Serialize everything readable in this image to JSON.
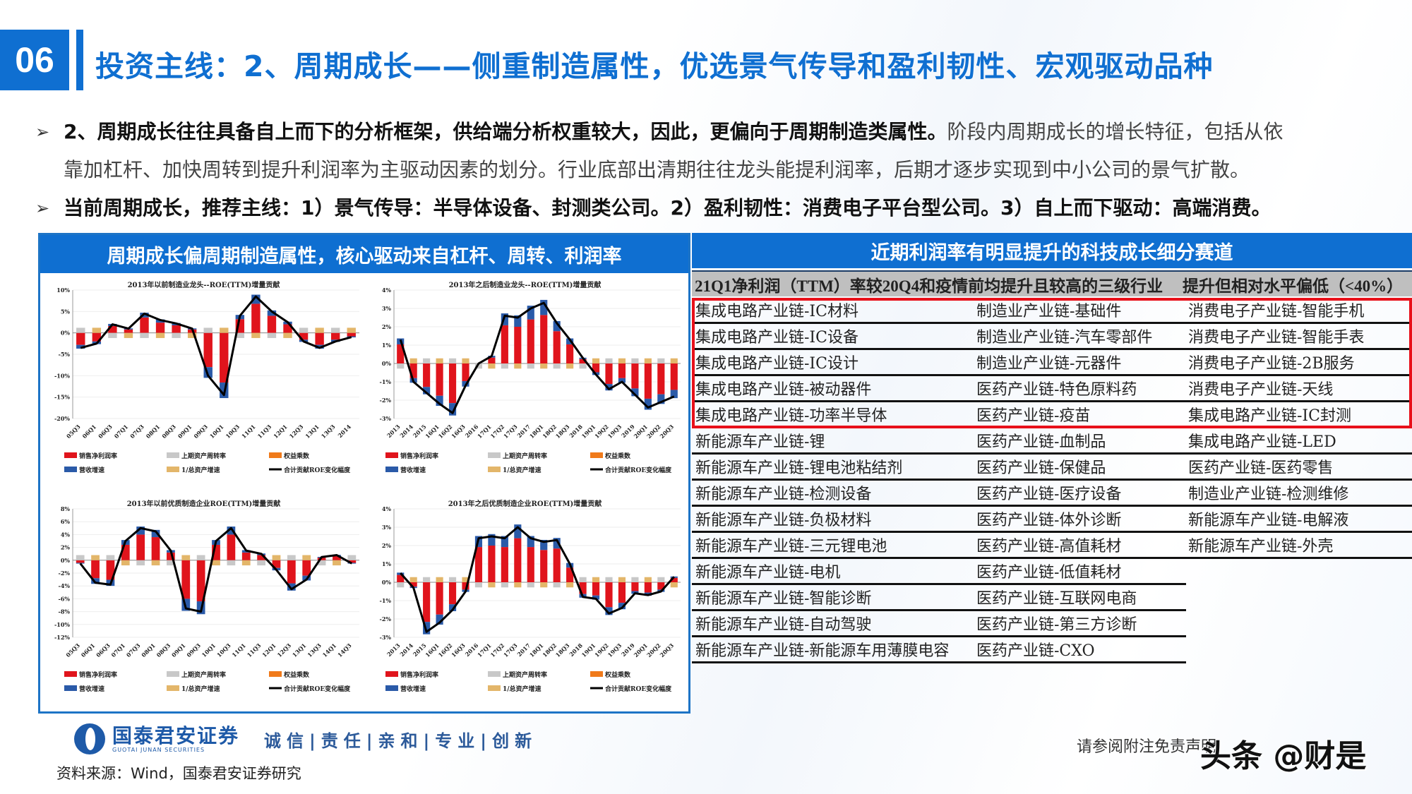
{
  "section_number": "06",
  "title": "投资主线：2、周期成长——侧重制造属性，优选景气传导和盈利韧性、宏观驱动品种",
  "bullets": [
    {
      "arrow": "➢",
      "bold": "2、周期成长往往具备自上而下的分析框架，供给端分析权重较大，因此，更偏向于周期制造类属性。",
      "normal": "阶段内周期成长的增长特征，包括从依",
      "line2": "靠加杠杆、加快周转到提升利润率为主驱动因素的划分。行业底部出清期往往龙头能提利润率，后期才逐步实现到中小公司的景气扩散。"
    },
    {
      "arrow": "➢",
      "bold": "当前周期成长，推荐主线：1）景气传导：半导体设备、封测类公司。2）盈利韧性：消费电子平台型公司。3）自上而下驱动：高端消费。"
    }
  ],
  "left_panel": {
    "header": "周期成长偏周期制造属性，核心驱动来自杠杆、周转、利润率",
    "legend": [
      "销售净利润率",
      "上期资产周转率",
      "权益乘数",
      "营收增速",
      "1/总资产增速",
      "合计贡献ROE变化幅度"
    ],
    "legend_colors": [
      "#e0141c",
      "#c8c8c8",
      "#f07a1a",
      "#2a5aa8",
      "#e3b66a",
      "#000000"
    ]
  },
  "chart_data": [
    {
      "type": "bar",
      "title": "2013年以前制造业龙头--ROE(TTM)增量贡献",
      "categories": [
        "05Q3",
        "06Q1",
        "06Q3",
        "07Q1",
        "07Q3",
        "08Q1",
        "08Q3",
        "09Q1",
        "09Q3",
        "10Q1",
        "10Q3",
        "11Q1",
        "11Q3",
        "12Q1",
        "12Q3",
        "13Q1",
        "13Q3",
        "2014"
      ],
      "ylim": [
        -20,
        10
      ],
      "yticks": [
        "10%",
        "5%",
        "0%",
        "-5%",
        "-10%",
        "-15%",
        "-20%"
      ],
      "series": [
        {
          "name": "合计贡献ROE变化幅度",
          "values": [
            -3.5,
            -2.5,
            2.0,
            1.0,
            4.5,
            3.0,
            2.2,
            1.0,
            -10,
            -14.5,
            4.0,
            8.5,
            5.0,
            2.5,
            -2.0,
            -3.5,
            -2.0,
            -1.0
          ]
        }
      ]
    },
    {
      "type": "bar",
      "title": "2013年之后制造业龙头--ROE(TTM)增量贡献",
      "categories": [
        "2013",
        "2014",
        "2015",
        "16Q1",
        "16Q2",
        "16Q3",
        "2016",
        "17Q1",
        "17Q2",
        "17Q3",
        "2017",
        "18Q1",
        "18Q2",
        "18Q3",
        "2018",
        "19Q1",
        "19Q2",
        "19Q3",
        "2019",
        "20Q1",
        "20Q2",
        "20Q3"
      ],
      "ylim": [
        -3,
        4
      ],
      "yticks": [
        "4%",
        "3%",
        "2%",
        "1%",
        "0%",
        "-1%",
        "-2%",
        "-3%"
      ],
      "series": [
        {
          "name": "合计贡献ROE变化幅度",
          "values": [
            1.3,
            -1.0,
            -1.6,
            -2.2,
            -2.7,
            -1.2,
            0.0,
            0.4,
            2.6,
            2.5,
            3.0,
            3.3,
            2.2,
            1.3,
            0.3,
            -0.6,
            -1.4,
            -1.0,
            -1.7,
            -2.4,
            -2.1,
            -1.8
          ]
        }
      ]
    },
    {
      "type": "bar",
      "title": "2013年以前优质制造企业ROE(TTM)增量贡献",
      "categories": [
        "05Q3",
        "06Q1",
        "06Q3",
        "07Q1",
        "07Q3",
        "08Q1",
        "08Q3",
        "09Q1",
        "09Q3",
        "10Q1",
        "10Q3",
        "11Q1",
        "11Q3",
        "12Q1",
        "12Q3",
        "13Q1",
        "13Q3",
        "14Q1",
        "14Q3"
      ],
      "ylim": [
        -12,
        8
      ],
      "yticks": [
        "8%",
        "6%",
        "4%",
        "2%",
        "0%",
        "-2%",
        "-4%",
        "-6%",
        "-8%",
        "-10%",
        "-12%"
      ],
      "series": [
        {
          "name": "合计贡献ROE变化幅度",
          "values": [
            -0.5,
            -3.5,
            -3.8,
            3.0,
            5.0,
            4.5,
            1.5,
            -7.5,
            -8.0,
            3.0,
            5.0,
            1.5,
            1.0,
            -1.5,
            -4.5,
            -3.0,
            0.5,
            0.8,
            -0.5
          ]
        }
      ]
    },
    {
      "type": "bar",
      "title": "2013年之后优质制造企业ROE(TTM)增量贡献",
      "categories": [
        "2013",
        "2014",
        "2015",
        "16Q1",
        "16Q2",
        "16Q3",
        "2016",
        "17Q1",
        "17Q2",
        "17Q3",
        "2017",
        "18Q1",
        "18Q2",
        "18Q3",
        "2018",
        "19Q1",
        "19Q2",
        "19Q3",
        "2019",
        "20Q1",
        "20Q2",
        "20Q3"
      ],
      "ylim": [
        -3,
        4
      ],
      "yticks": [
        "4%",
        "3%",
        "2%",
        "1%",
        "0%",
        "-1%",
        "-2%",
        "-3%"
      ],
      "series": [
        {
          "name": "合计贡献ROE变化幅度",
          "values": [
            0.5,
            -0.3,
            -2.7,
            -2.2,
            -1.5,
            -0.5,
            2.4,
            2.5,
            2.4,
            3.0,
            2.4,
            2.2,
            2.3,
            1.0,
            -0.8,
            -0.9,
            -1.7,
            -1.4,
            -0.6,
            -0.7,
            -0.5,
            0.3
          ]
        }
      ]
    }
  ],
  "right_panel": {
    "header": "近期利润率有明显提升的科技成长细分赛道",
    "col_header_1": "21Q1净利润（TTM）率较20Q4和疫情前均提升且较高的三级行业",
    "col_header_2": "提升但相对水平偏低（<40%）",
    "rows": [
      [
        "集成电路产业链-IC材料",
        "制造业产业链-基础件",
        "消费电子产业链-智能手机"
      ],
      [
        "集成电路产业链-IC设备",
        "制造业产业链-汽车零部件",
        "消费电子产业链-智能手表"
      ],
      [
        "集成电路产业链-IC设计",
        "制造业产业链-元器件",
        "消费电子产业链-2B服务"
      ],
      [
        "集成电路产业链-被动器件",
        "医药产业链-特色原料药",
        "消费电子产业链-天线"
      ],
      [
        "集成电路产业链-功率半导体",
        "医药产业链-疫苗",
        "集成电路产业链-IC封测"
      ],
      [
        "新能源车产业链-锂",
        "医药产业链-血制品",
        "集成电路产业链-LED"
      ],
      [
        "新能源车产业链-锂电池粘结剂",
        "医药产业链-保健品",
        "医药产业链-医药零售"
      ],
      [
        "新能源车产业链-检测设备",
        "医药产业链-医疗设备",
        "制造业产业链-检测维修"
      ],
      [
        "新能源车产业链-负极材料",
        "医药产业链-体外诊断",
        "新能源车产业链-电解液"
      ],
      [
        "新能源车产业链-三元锂电池",
        "医药产业链-高值耗材",
        "新能源车产业链-外壳"
      ],
      [
        "新能源车产业链-电机",
        "医药产业链-低值耗材",
        ""
      ],
      [
        "新能源车产业链-智能诊断",
        "医药产业链-互联网电商",
        ""
      ],
      [
        "新能源车产业链-自动驾驶",
        "医药产业链-第三方诊断",
        ""
      ],
      [
        "新能源车产业链-新能源车用薄膜电容",
        "医药产业链-CXO",
        ""
      ]
    ]
  },
  "footer": {
    "logo_cn": "国泰君安证券",
    "logo_en": "GUOTAI JUNAN SECURITIES",
    "motto": "诚信|责任|亲和|专业|创新",
    "source": "资料来源：Wind，国泰君安证券研究",
    "disclaimer": "请参阅附注免责声明",
    "watermark": "头条 @财是"
  },
  "colors": {
    "brand_blue": "#0f6fd1",
    "highlight_red": "#e8101a",
    "table_header_gray": "#bfbfbf"
  }
}
